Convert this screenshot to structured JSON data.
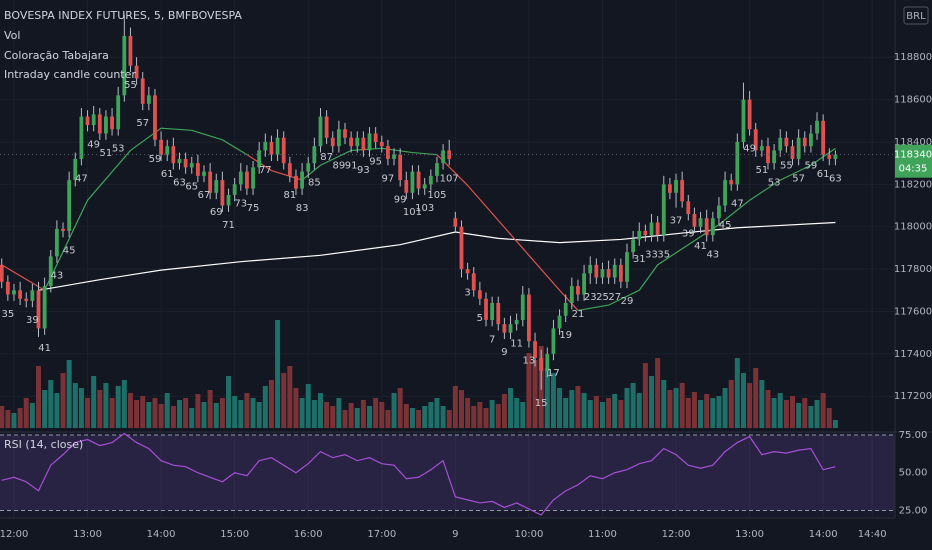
{
  "chart_data": {
    "type": "candlestick",
    "title": "BOVESPA INDEX FUTURES, 5, BMFBOVESPA",
    "indicators": [
      "Vol",
      "Coloração Tabajara",
      "Intraday candle counter"
    ],
    "currency": "BRL",
    "countdown": "04:35",
    "up_color": "#3fa45a",
    "down_color": "#e0524f",
    "vol_up_color": "#1f6f69",
    "vol_down_color": "#7a3236",
    "xlim": [
      -0.28,
      145.72
    ],
    "xticks": [
      {
        "value": 2,
        "label": "12:00"
      },
      {
        "value": 14,
        "label": "13:00"
      },
      {
        "value": 26,
        "label": "14:00"
      },
      {
        "value": 38,
        "label": "15:00"
      },
      {
        "value": 50,
        "label": "16:00"
      },
      {
        "value": 62,
        "label": "17:00"
      },
      {
        "value": 74,
        "label": "9"
      },
      {
        "value": 86,
        "label": "10:00"
      },
      {
        "value": 98,
        "label": "11:00"
      },
      {
        "value": 110,
        "label": "12:00"
      },
      {
        "value": 122,
        "label": "13:00"
      },
      {
        "value": 134,
        "label": "14:00"
      },
      {
        "value": 142,
        "label": "14:40"
      }
    ],
    "ylim": [
      117050,
      119070
    ],
    "yticks": [
      117200,
      117400,
      117600,
      117800,
      118000,
      118200,
      118400,
      118600,
      118800
    ],
    "open": [
      117820,
      117740,
      117680,
      117700,
      117660,
      117650,
      117700,
      117520,
      117720,
      117860,
      117990,
      117980,
      118220,
      118320,
      118520,
      118480,
      118530,
      118440,
      118520,
      118460,
      118620,
      118900,
      118760,
      118700,
      118580,
      118620,
      118410,
      118340,
      118380,
      118300,
      118320,
      118280,
      118300,
      118240,
      118260,
      118160,
      118220,
      118100,
      118150,
      118200,
      118260,
      118180,
      118280,
      118360,
      118400,
      118340,
      118420,
      118300,
      118240,
      118180,
      118260,
      118300,
      118380,
      118520,
      118420,
      118380,
      118460,
      118420,
      118380,
      118420,
      118360,
      118440,
      118400,
      118380,
      118320,
      118340,
      118220,
      118160,
      118260,
      118180,
      118200,
      118240,
      118300,
      118360,
      118040,
      118000,
      117800,
      117780,
      117700,
      117660,
      117560,
      117640,
      117540,
      117500,
      117540,
      117560,
      117680,
      117460,
      117380,
      117320,
      117400,
      117520,
      117580,
      117640,
      117720,
      117680,
      117780,
      117820,
      117760,
      117800,
      117760,
      117820,
      117740,
      117880,
      117940,
      117980,
      117960,
      118020,
      117960,
      118200,
      118160,
      118220,
      118120,
      118060,
      118000,
      118040,
      117960,
      118040,
      118100,
      118220,
      118200,
      118400,
      118600,
      118460,
      118360,
      118380,
      118300,
      118360,
      118420,
      118380,
      118320,
      118420,
      118380,
      118440,
      118500,
      118340,
      118320
    ],
    "high": [
      117850,
      117770,
      117730,
      117740,
      117690,
      117730,
      117740,
      117760,
      117890,
      118030,
      118020,
      118260,
      118350,
      118560,
      118550,
      118570,
      118560,
      118550,
      118560,
      118660,
      119000,
      118940,
      118800,
      118730,
      118660,
      118650,
      118450,
      118410,
      118420,
      118350,
      118350,
      118330,
      118340,
      118290,
      118300,
      118250,
      118260,
      118180,
      118230,
      118300,
      118290,
      118310,
      118400,
      118440,
      118430,
      118460,
      118450,
      118330,
      118270,
      118300,
      118330,
      118420,
      118560,
      118550,
      118450,
      118500,
      118490,
      118450,
      118450,
      118450,
      118470,
      118470,
      118430,
      118410,
      118370,
      118370,
      118260,
      118290,
      118290,
      118230,
      118270,
      118330,
      118390,
      118410,
      118070,
      118030,
      117830,
      117810,
      117740,
      117690,
      117670,
      117670,
      117570,
      117580,
      117590,
      117720,
      117710,
      117500,
      117420,
      117430,
      117560,
      117610,
      117680,
      117760,
      117750,
      117820,
      117860,
      117850,
      117830,
      117840,
      117850,
      117850,
      117920,
      117980,
      118020,
      118010,
      118060,
      118050,
      118240,
      118230,
      118250,
      118260,
      118150,
      118090,
      118070,
      118080,
      118070,
      118140,
      118260,
      118250,
      118440,
      118680,
      118640,
      118490,
      118410,
      118420,
      118390,
      118460,
      118450,
      118410,
      118460,
      118450,
      118480,
      118540,
      118530,
      118370,
      118360
    ],
    "low": [
      117710,
      117650,
      117650,
      117630,
      117620,
      117620,
      117480,
      117490,
      117690,
      117830,
      117950,
      117950,
      118190,
      118290,
      118450,
      118450,
      118410,
      118410,
      118430,
      118430,
      118590,
      118730,
      118670,
      118550,
      118550,
      118380,
      118310,
      118310,
      118270,
      118270,
      118250,
      118250,
      118210,
      118210,
      118130,
      118130,
      118070,
      118070,
      118120,
      118170,
      118150,
      118150,
      118250,
      118330,
      118310,
      118310,
      118270,
      118210,
      118150,
      118150,
      118230,
      118270,
      118350,
      118390,
      118350,
      118350,
      118390,
      118350,
      118350,
      118330,
      118330,
      118370,
      118350,
      118290,
      118290,
      118190,
      118130,
      118130,
      118150,
      118150,
      118170,
      118210,
      118270,
      118290,
      117970,
      117760,
      117750,
      117670,
      117630,
      117530,
      117530,
      117510,
      117470,
      117470,
      117510,
      117530,
      117430,
      117340,
      117230,
      117290,
      117370,
      117490,
      117550,
      117610,
      117650,
      117650,
      117730,
      117730,
      117730,
      117730,
      117730,
      117710,
      117710,
      117850,
      117910,
      117930,
      117930,
      117930,
      117930,
      118130,
      118090,
      118090,
      118030,
      117970,
      117970,
      117930,
      117930,
      118010,
      118070,
      118170,
      118170,
      118370,
      118430,
      118330,
      118330,
      118270,
      118270,
      118330,
      118350,
      118290,
      118290,
      118350,
      118350,
      118410,
      118310,
      118290,
      118290
    ],
    "close": [
      117740,
      117680,
      117700,
      117660,
      117650,
      117700,
      117520,
      117720,
      117860,
      117990,
      117980,
      118220,
      118320,
      118520,
      118480,
      118530,
      118440,
      118520,
      118460,
      118620,
      118900,
      118760,
      118700,
      118580,
      118620,
      118410,
      118340,
      118380,
      118300,
      118320,
      118280,
      118300,
      118240,
      118260,
      118160,
      118220,
      118100,
      118150,
      118200,
      118260,
      118180,
      118280,
      118360,
      118400,
      118340,
      118420,
      118300,
      118240,
      118180,
      118260,
      118300,
      118380,
      118520,
      118420,
      118380,
      118460,
      118420,
      118380,
      118420,
      118360,
      118440,
      118400,
      118380,
      118320,
      118340,
      118220,
      118160,
      118260,
      118180,
      118200,
      118240,
      118300,
      118360,
      118320,
      118000,
      117800,
      117780,
      117700,
      117660,
      117560,
      117640,
      117540,
      117500,
      117540,
      117560,
      117680,
      117460,
      117380,
      117320,
      117400,
      117520,
      117580,
      117640,
      117720,
      117680,
      117780,
      117820,
      117760,
      117800,
      117760,
      117820,
      117740,
      117880,
      117940,
      117980,
      117960,
      118020,
      117960,
      118200,
      118160,
      118220,
      118120,
      118060,
      118000,
      118040,
      117960,
      118040,
      118100,
      118220,
      118200,
      118400,
      118600,
      118460,
      118360,
      118380,
      118300,
      118360,
      118420,
      118380,
      118320,
      118420,
      118380,
      118440,
      118500,
      118340,
      118320,
      118340
    ],
    "volume": [
      22,
      18,
      15,
      20,
      30,
      25,
      62,
      38,
      48,
      35,
      55,
      68,
      45,
      40,
      30,
      52,
      38,
      45,
      30,
      42,
      48,
      35,
      28,
      32,
      26,
      30,
      24,
      35,
      22,
      28,
      30,
      20,
      34,
      26,
      38,
      25,
      30,
      52,
      32,
      28,
      35,
      30,
      26,
      42,
      48,
      108,
      55,
      62,
      40,
      30,
      44,
      28,
      35,
      26,
      22,
      30,
      18,
      25,
      20,
      28,
      22,
      30,
      26,
      18,
      35,
      40,
      24,
      20,
      18,
      22,
      26,
      30,
      22,
      18,
      42,
      38,
      30,
      22,
      26,
      20,
      28,
      24,
      34,
      40,
      30,
      26,
      75,
      68,
      82,
      60,
      55,
      40,
      30,
      38,
      42,
      35,
      28,
      32,
      26,
      30,
      34,
      28,
      40,
      45,
      35,
      65,
      52,
      70,
      48,
      38,
      40,
      45,
      30,
      36,
      28,
      34,
      30,
      32,
      40,
      48,
      70,
      55,
      45,
      60,
      48,
      38,
      30,
      35,
      28,
      32,
      25,
      30,
      22,
      28,
      35,
      20,
      8
    ],
    "volume_ylim": [
      0,
      428
    ],
    "lines": [
      {
        "color": "#ffffff",
        "x": [
          6,
          16,
          26,
          39,
          52,
          65,
          74,
          81,
          91,
          101,
          111,
          120,
          136
        ],
        "values": [
          117700,
          117750,
          117795,
          117835,
          117865,
          117915,
          117975,
          117945,
          117925,
          117940,
          117970,
          117995,
          118020
        ]
      },
      {
        "color": "#e0524f",
        "x": [
          0,
          7,
          null,
          40,
          44,
          49,
          null,
          71,
          76,
          81,
          86,
          91,
          94
        ],
        "values": [
          117820,
          117700,
          null,
          118340,
          118265,
          118220,
          null,
          118340,
          118195,
          118030,
          117865,
          117700,
          117605
        ]
      },
      {
        "color": "#3fa45a",
        "x": [
          7,
          14,
          21,
          26,
          31,
          36,
          40,
          null,
          49,
          52,
          57,
          62,
          67,
          71,
          null,
          94,
          99,
          104,
          107,
          112,
          117,
          122,
          127,
          132,
          136
        ],
        "values": [
          117700,
          118125,
          118360,
          118465,
          118455,
          118410,
          118340,
          null,
          118220,
          118290,
          118360,
          118370,
          118350,
          118340,
          null,
          117605,
          117630,
          117700,
          117820,
          117915,
          118010,
          118125,
          118220,
          118290,
          118370
        ]
      }
    ],
    "counter": {
      "x": [
        1,
        5,
        7,
        9,
        11,
        13,
        15,
        17,
        19,
        21,
        23,
        25,
        27,
        29,
        31,
        33,
        35,
        37,
        39,
        41,
        43,
        47,
        49,
        51,
        53,
        55,
        57,
        59,
        61,
        63,
        65,
        67,
        69,
        71,
        73,
        76,
        78,
        80,
        82,
        84,
        86,
        88,
        90,
        92,
        94,
        96,
        98,
        100,
        102,
        104,
        106,
        108,
        110,
        112,
        114,
        116,
        118,
        120,
        122,
        124,
        126,
        128,
        130,
        132,
        134,
        136
      ],
      "values": [
        35,
        39,
        41,
        43,
        45,
        47,
        49,
        51,
        53,
        55,
        57,
        59,
        61,
        63,
        65,
        67,
        69,
        71,
        73,
        75,
        77,
        81,
        83,
        85,
        87,
        89,
        91,
        93,
        95,
        97,
        99,
        101,
        103,
        105,
        107,
        3,
        5,
        7,
        9,
        11,
        13,
        15,
        17,
        19,
        21,
        23,
        25,
        27,
        29,
        31,
        33,
        35,
        37,
        39,
        41,
        43,
        45,
        47,
        49,
        51,
        53,
        55,
        57,
        59,
        61,
        63
      ]
    },
    "rsi": {
      "title": "RSI (14, close)",
      "color": "#a64fd6",
      "band_color": "#7e57c2",
      "ylim": [
        20,
        77
      ],
      "yticks": [
        {
          "value": 25,
          "label": "25.00"
        },
        {
          "value": 50,
          "label": "50.00"
        },
        {
          "value": 75,
          "label": "75.00"
        }
      ],
      "x": [
        0,
        2,
        4,
        6,
        8,
        10,
        12,
        14,
        16,
        18,
        20,
        22,
        24,
        26,
        28,
        30,
        32,
        34,
        36,
        38,
        40,
        42,
        44,
        46,
        48,
        50,
        52,
        54,
        56,
        58,
        60,
        62,
        64,
        66,
        68,
        70,
        72,
        74,
        76,
        78,
        80,
        82,
        84,
        86,
        88,
        90,
        92,
        94,
        96,
        98,
        100,
        102,
        104,
        106,
        108,
        110,
        112,
        114,
        116,
        118,
        120,
        122,
        124,
        126,
        128,
        130,
        132,
        134,
        136
      ],
      "values": [
        45,
        47,
        44,
        38,
        55,
        62,
        70,
        72,
        68,
        70,
        76,
        70,
        66,
        58,
        55,
        54,
        50,
        47,
        44,
        50,
        48,
        58,
        60,
        55,
        50,
        56,
        64,
        60,
        62,
        58,
        60,
        56,
        55,
        46,
        47,
        52,
        58,
        34,
        32,
        30,
        31,
        27,
        30,
        26,
        22,
        32,
        38,
        42,
        48,
        46,
        50,
        52,
        56,
        58,
        66,
        62,
        55,
        53,
        55,
        64,
        70,
        74,
        62,
        64,
        63,
        65,
        66,
        52,
        54
      ]
    }
  }
}
